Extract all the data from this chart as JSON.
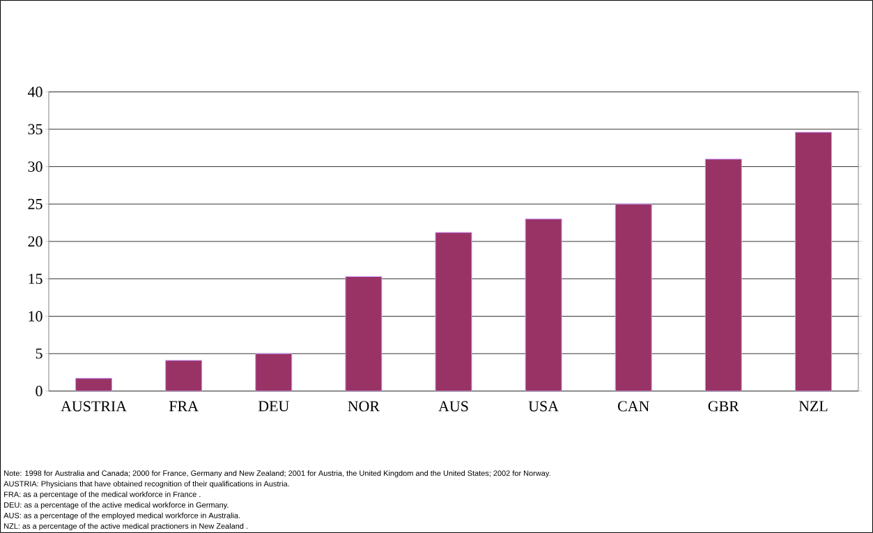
{
  "chart_data": {
    "type": "bar",
    "categories": [
      "AUSTRIA",
      "FRA",
      "DEU",
      "NOR",
      "AUS",
      "USA",
      "CAN",
      "GBR",
      "NZL"
    ],
    "values": [
      1.7,
      4.1,
      5.0,
      15.3,
      21.2,
      23.0,
      25.0,
      31.0,
      34.6
    ],
    "color": "#993366",
    "ylim": [
      0,
      40
    ],
    "yticks": [
      0,
      5,
      10,
      15,
      20,
      25,
      30,
      35,
      40
    ],
    "grid": "y",
    "annotations": [
      "Note: 1998 for Australia and Canada; 2000 for France, Germany and New Zealand; 2001 for Austria, the United Kingdom and the United States; 2002 for Norway.",
      "AUSTRIA: Physicians that have obtained recognition of their qualifications in Austria.",
      "FRA: as a percentage of the medical workforce in France .",
      "DEU: as a percentage of the active medical workforce in Germany.",
      "AUS: as a percentage of the employed medical workforce in Australia.",
      "NZL: as a percentage of the active medical practioners in New Zealand ."
    ]
  }
}
